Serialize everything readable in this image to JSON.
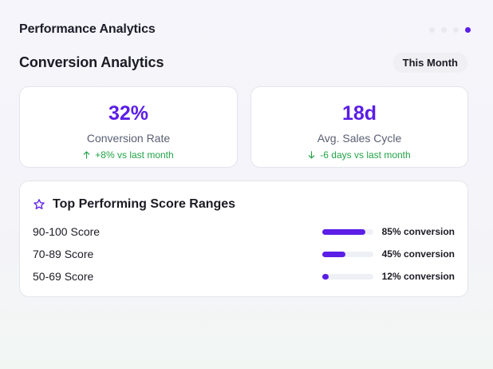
{
  "header": {
    "title": "Performance Analytics",
    "pager": {
      "count": 4,
      "active_index": 3
    }
  },
  "section": {
    "title": "Conversion Analytics",
    "period_button": "This Month"
  },
  "metrics": [
    {
      "value": "32%",
      "label": "Conversion Rate",
      "change": "+8% vs last month",
      "direction": "up"
    },
    {
      "value": "18d",
      "label": "Avg. Sales Cycle",
      "change": "-6 days vs last month",
      "direction": "down"
    }
  ],
  "ranges": {
    "title": "Top Performing Score Ranges",
    "icon": "star-icon",
    "items": [
      {
        "label": "90-100 Score",
        "conversion_text": "85% conversion",
        "conversion": 85
      },
      {
        "label": "70-89 Score",
        "conversion_text": "45% conversion",
        "conversion": 45
      },
      {
        "label": "50-69 Score",
        "conversion_text": "12% conversion",
        "conversion": 12
      }
    ]
  },
  "colors": {
    "accent": "#5b1ee6",
    "positive": "#22a447",
    "track": "#eef0f5"
  }
}
